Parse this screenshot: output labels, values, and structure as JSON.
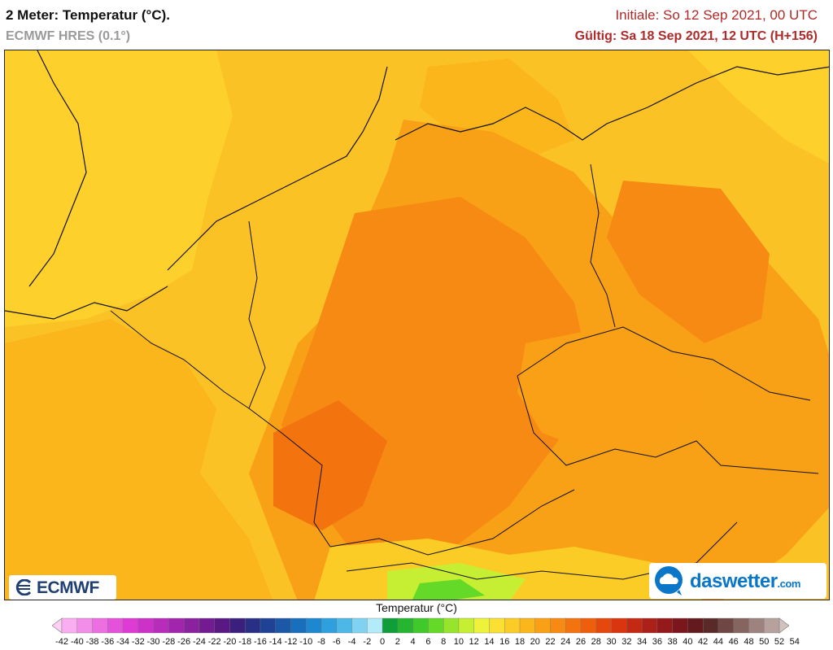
{
  "header": {
    "title": "2 Meter: Temperatur (°C).",
    "model": "ECMWF HRES (0.1°)",
    "init": "Initiale: So 12 Sep 2021, 00 UTC",
    "valid": "Gültig: Sa 18 Sep 2021, 12 UTC (H+156)"
  },
  "logos": {
    "ecmwf": "ECMWF",
    "daswetter": "daswetter",
    "daswetter_suffix": ".com"
  },
  "legend": {
    "title": "Temperatur (°C)",
    "ticks": [
      "-42",
      "-40",
      "-38",
      "-36",
      "-34",
      "-32",
      "-30",
      "-28",
      "-26",
      "-24",
      "-22",
      "-20",
      "-18",
      "-16",
      "-14",
      "-12",
      "-10",
      "-8",
      "-6",
      "-4",
      "-2",
      "0",
      "2",
      "4",
      "6",
      "8",
      "10",
      "12",
      "14",
      "16",
      "18",
      "20",
      "22",
      "24",
      "26",
      "28",
      "30",
      "32",
      "34",
      "36",
      "38",
      "40",
      "42",
      "44",
      "46",
      "48",
      "50",
      "52",
      "54"
    ],
    "colors": [
      "#fdd0f4",
      "#f8aef0",
      "#f28ee9",
      "#ec6fe2",
      "#e552da",
      "#dd3bd4",
      "#cc32c8",
      "#b72cbb",
      "#a126ad",
      "#8a219e",
      "#731b90",
      "#5a1883",
      "#3a207c",
      "#2a2f86",
      "#1f4294",
      "#1c58a8",
      "#1a6fbd",
      "#1d87d0",
      "#2ea0de",
      "#4db8e8",
      "#7fd3f1",
      "#b3ebf8",
      "#0f9e3a",
      "#25b52f",
      "#3fc92a",
      "#65d928",
      "#96e52c",
      "#c6ef33",
      "#eef23b",
      "#f9e032",
      "#fbcc25",
      "#fbb61c",
      "#f9a016",
      "#f78a12",
      "#f3740f",
      "#ee5f0d",
      "#e5480c",
      "#d9350e",
      "#c42913",
      "#ab2018",
      "#93191b",
      "#7b161d",
      "#641a1c",
      "#5a2a29",
      "#6e4744",
      "#866460",
      "#9e827e",
      "#b7a19d",
      "#cfc2bf"
    ]
  }
}
